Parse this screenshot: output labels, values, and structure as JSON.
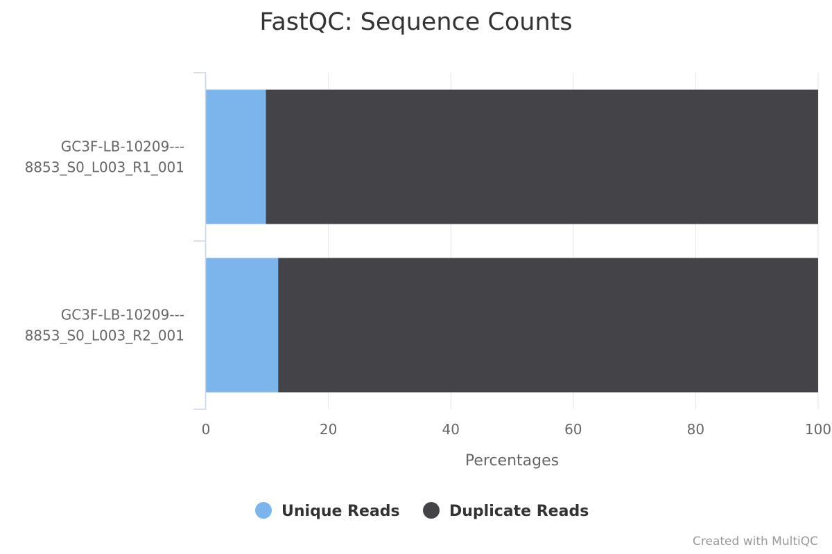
{
  "chart_data": {
    "type": "bar",
    "orientation": "horizontal",
    "stacked": true,
    "title": "FastQC: Sequence Counts",
    "xlabel": "Percentages",
    "ylabel": "",
    "xlim": [
      0,
      100
    ],
    "xticks": [
      0,
      20,
      40,
      60,
      80,
      100
    ],
    "grid": true,
    "legend_position": "bottom",
    "categories": [
      {
        "line1": "GC3F-LB-10209---",
        "line2": "8853_S0_L003_R1_001"
      },
      {
        "line1": "GC3F-LB-10209---",
        "line2": "8853_S0_L003_R2_001"
      }
    ],
    "series": [
      {
        "name": "Unique Reads",
        "color": "#7cb5ec",
        "values": [
          9.8,
          11.8
        ]
      },
      {
        "name": "Duplicate Reads",
        "color": "#434348",
        "values": [
          90.2,
          88.2
        ]
      }
    ]
  },
  "credit": "Created with MultiQC"
}
